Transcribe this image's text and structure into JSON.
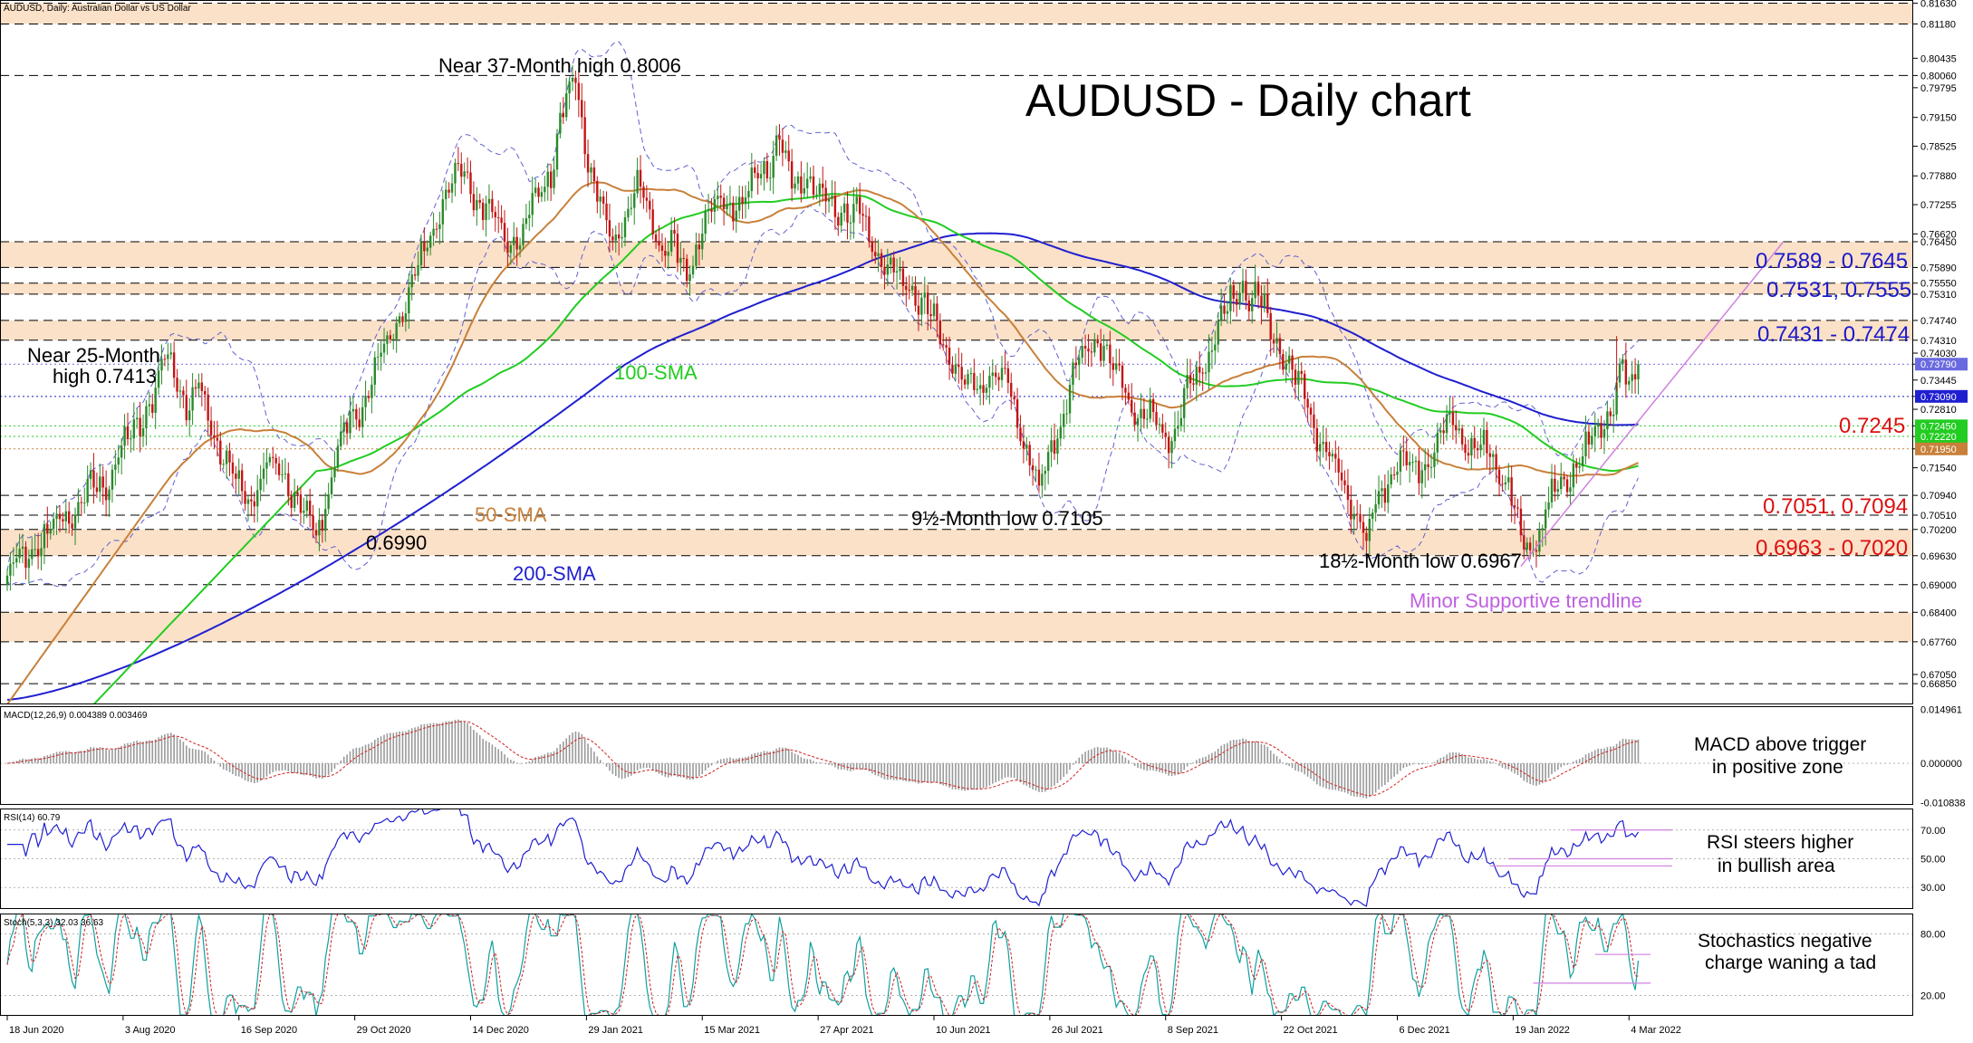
{
  "colors": {
    "bull": "#2a8a2a",
    "bear": "#c41414",
    "sma50": "#c8803a",
    "sma100": "#22cc22",
    "sma200": "#1f1fd0",
    "bands": "#6060d0",
    "zone_fill": "#fbe1c8",
    "rsi_line": "#2020d0",
    "stoch_k": "#10a0a0",
    "stoch_d": "#d02020",
    "trendline": "#d080e0",
    "macd_hist": "#9a9a9a",
    "macd_signal": "#d02020",
    "blue_label": "#1a1acc",
    "red_label": "#dd1010"
  },
  "chart_data": {
    "type": "candlestick",
    "symbol_header": "AUDUSD, Daily:  Australian Dollar vs US Dollar",
    "title": "AUDUSD - Daily chart",
    "ylim": [
      0.664,
      0.817
    ],
    "x_tick_labels": [
      "18 Jun 2020",
      "3 Aug 2020",
      "16 Sep 2020",
      "29 Oct 2020",
      "14 Dec 2020",
      "29 Jan 2021",
      "15 Mar 2021",
      "27 Apr 2021",
      "10 Jun 2021",
      "26 Jul 2021",
      "8 Sep 2021",
      "22 Oct 2021",
      "6 Dec 2021",
      "19 Jan 2022",
      "4 Mar 2022"
    ],
    "y_axis_ticks": [
      "0.81630",
      "0.81180",
      "0.80435",
      "0.80060",
      "0.79795",
      "0.79150",
      "0.78525",
      "0.77880",
      "0.77255",
      "0.76620",
      "0.76450",
      "0.75890",
      "0.75550",
      "0.75310",
      "0.74740",
      "0.74310",
      "0.74030",
      "0.73790",
      "0.73445",
      "0.73090",
      "0.72810",
      "0.72450",
      "0.72220",
      "0.71950",
      "0.71540",
      "0.70940",
      "0.70510",
      "0.70200",
      "0.69630",
      "0.69000",
      "0.68400",
      "0.67760",
      "0.67050",
      "0.66850"
    ],
    "highlighted_ticks": [
      {
        "label": "0.73790",
        "value": 0.7379,
        "bg": "#6a6ae0",
        "fg": "#ffffff"
      },
      {
        "label": "0.73090",
        "value": 0.7309,
        "bg": "#1f1fd0",
        "fg": "#ffffff"
      },
      {
        "label": "0.72450",
        "value": 0.7245,
        "bg": "#22cc22",
        "fg": "#ffffff"
      },
      {
        "label": "0.72220",
        "value": 0.7222,
        "bg": "#22cc22",
        "fg": "#ffffff"
      },
      {
        "label": "0.71950",
        "value": 0.7195,
        "bg": "#c8803a",
        "fg": "#ffffff"
      }
    ],
    "zones": [
      {
        "low": 0.8118,
        "high": 0.8163
      },
      {
        "low": 0.7589,
        "high": 0.7645
      },
      {
        "low": 0.7531,
        "high": 0.7555
      },
      {
        "low": 0.7431,
        "high": 0.7474
      },
      {
        "low": 0.6963,
        "high": 0.702
      },
      {
        "low": 0.6776,
        "high": 0.684
      }
    ],
    "dashed_levels": [
      0.8163,
      0.8118,
      0.8006,
      0.7645,
      0.7589,
      0.7555,
      0.7531,
      0.7474,
      0.7431,
      0.7094,
      0.7051,
      0.702,
      0.6963,
      0.69,
      0.684,
      0.6776,
      0.6685
    ],
    "dotted_levels": [
      {
        "value": 0.7379,
        "color": "#6a6ae0"
      },
      {
        "value": 0.7309,
        "color": "#1f1fd0"
      },
      {
        "value": 0.7245,
        "color": "#22cc22"
      },
      {
        "value": 0.7222,
        "color": "#22cc22"
      },
      {
        "value": 0.7195,
        "color": "#c8803a"
      }
    ],
    "price_path": [
      [
        0,
        0.6915
      ],
      [
        10,
        0.699
      ],
      [
        20,
        0.7055
      ],
      [
        32,
        0.713
      ],
      [
        40,
        0.722
      ],
      [
        48,
        0.732
      ],
      [
        52,
        0.7413
      ],
      [
        58,
        0.729
      ],
      [
        62,
        0.733
      ],
      [
        66,
        0.725
      ],
      [
        70,
        0.718
      ],
      [
        74,
        0.712
      ],
      [
        78,
        0.708
      ],
      [
        84,
        0.716
      ],
      [
        90,
        0.713
      ],
      [
        96,
        0.706
      ],
      [
        100,
        0.699
      ],
      [
        106,
        0.718
      ],
      [
        112,
        0.726
      ],
      [
        118,
        0.734
      ],
      [
        124,
        0.744
      ],
      [
        130,
        0.753
      ],
      [
        136,
        0.764
      ],
      [
        142,
        0.776
      ],
      [
        148,
        0.779
      ],
      [
        154,
        0.772
      ],
      [
        160,
        0.768
      ],
      [
        166,
        0.764
      ],
      [
        172,
        0.776
      ],
      [
        176,
        0.78
      ],
      [
        180,
        0.792
      ],
      [
        184,
        0.8006
      ],
      [
        188,
        0.782
      ],
      [
        192,
        0.772
      ],
      [
        196,
        0.765
      ],
      [
        200,
        0.77
      ],
      [
        204,
        0.776
      ],
      [
        208,
        0.77
      ],
      [
        212,
        0.764
      ],
      [
        216,
        0.762
      ],
      [
        220,
        0.758
      ],
      [
        226,
        0.768
      ],
      [
        232,
        0.774
      ],
      [
        238,
        0.772
      ],
      [
        244,
        0.78
      ],
      [
        250,
        0.786
      ],
      [
        254,
        0.776
      ],
      [
        258,
        0.779
      ],
      [
        264,
        0.774
      ],
      [
        270,
        0.772
      ],
      [
        276,
        0.77
      ],
      [
        282,
        0.762
      ],
      [
        288,
        0.756
      ],
      [
        294,
        0.754
      ],
      [
        300,
        0.746
      ],
      [
        306,
        0.739
      ],
      [
        312,
        0.732
      ],
      [
        318,
        0.736
      ],
      [
        324,
        0.732
      ],
      [
        330,
        0.72
      ],
      [
        334,
        0.7105
      ],
      [
        340,
        0.724
      ],
      [
        346,
        0.736
      ],
      [
        352,
        0.745
      ],
      [
        358,
        0.737
      ],
      [
        364,
        0.73
      ],
      [
        370,
        0.726
      ],
      [
        376,
        0.722
      ],
      [
        382,
        0.731
      ],
      [
        388,
        0.74
      ],
      [
        394,
        0.749
      ],
      [
        400,
        0.7555
      ],
      [
        406,
        0.75
      ],
      [
        412,
        0.742
      ],
      [
        418,
        0.733
      ],
      [
        424,
        0.724
      ],
      [
        430,
        0.714
      ],
      [
        436,
        0.707
      ],
      [
        440,
        0.6993
      ],
      [
        444,
        0.709
      ],
      [
        450,
        0.718
      ],
      [
        456,
        0.714
      ],
      [
        462,
        0.72
      ],
      [
        468,
        0.725
      ],
      [
        474,
        0.72
      ],
      [
        480,
        0.718
      ],
      [
        486,
        0.712
      ],
      [
        490,
        0.7
      ],
      [
        494,
        0.6967
      ],
      [
        498,
        0.707
      ],
      [
        504,
        0.713
      ],
      [
        510,
        0.718
      ],
      [
        516,
        0.724
      ],
      [
        520,
        0.73
      ],
      [
        522,
        0.742
      ],
      [
        524,
        0.733
      ],
      [
        526,
        0.733
      ],
      [
        528,
        0.7379
      ]
    ],
    "annotations": [
      "Near 37-Month high 0.8006",
      "Near 25-Month",
      "high 0.7413",
      "100-SMA",
      "50-SMA",
      "200-SMA",
      "0.6990",
      "9½-Month low 0.7105",
      "18½-Month low 0.6967",
      "Minor Supportive trendline"
    ],
    "level_labels": [
      {
        "text": "0.7589 - 0.7645",
        "color": "blue"
      },
      {
        "text": "0.7531, 0.7555",
        "color": "blue"
      },
      {
        "text": "0.7431 - 0.7474",
        "color": "blue"
      },
      {
        "text": "0.7245",
        "color": "red"
      },
      {
        "text": "0.7051, 0.7094",
        "color": "red"
      },
      {
        "text": "0.6963 - 0.7020",
        "color": "red"
      }
    ],
    "macd": {
      "header": "MACD(12,26,9) 0.004389 0.003469",
      "ticks": [
        "0.014961",
        "0.000000",
        "-0.010838"
      ],
      "ylim": [
        -0.0115,
        0.0158
      ],
      "note_line1": "MACD above trigger",
      "note_line2": "in positive zone"
    },
    "rsi": {
      "header": "RSI(14) 60.79",
      "ticks": [
        "70.00",
        "50.00",
        "30.00"
      ],
      "ylim": [
        15,
        85
      ],
      "note_line1": "RSI steers higher",
      "note_line2": "in bullish area"
    },
    "stoch": {
      "header": "Stoch(5,3,3) 32.03 36.63",
      "ticks": [
        "80.00",
        "20.00"
      ],
      "ylim": [
        0,
        100
      ],
      "note_line1": "Stochastics negative",
      "note_line2": "charge waning a tad"
    }
  }
}
